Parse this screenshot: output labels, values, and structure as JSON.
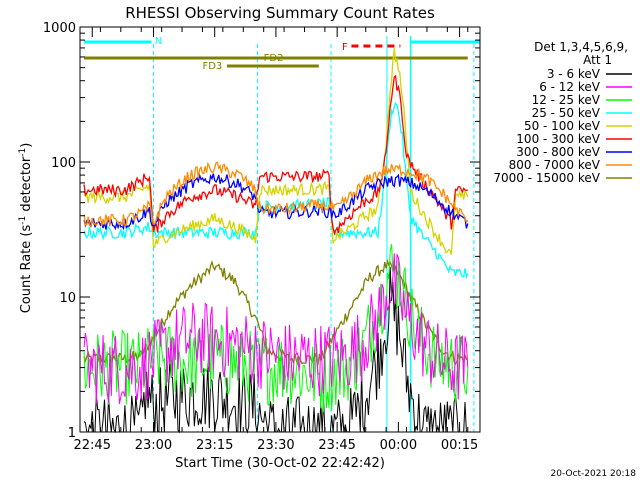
{
  "chart_data": {
    "type": "line",
    "title": "RHESSI Observing Summary Count Rates",
    "xlabel": "Start Time (30-Oct-02 22:42:42)",
    "ylabel": "Count Rate (s",
    "ylabel_sup1": "-1",
    "ylabel_mid": " detector",
    "ylabel_sup2": "-1",
    "ylabel_end": ")",
    "y_scale": "log",
    "ylim": [
      1,
      1000
    ],
    "xlim": [
      -3,
      95
    ],
    "x_ticks": [
      {
        "v": 0,
        "label": "22:45"
      },
      {
        "v": 15,
        "label": "23:00"
      },
      {
        "v": 30,
        "label": "23:15"
      },
      {
        "v": 45,
        "label": "23:30"
      },
      {
        "v": 60,
        "label": "23:45"
      },
      {
        "v": 75,
        "label": "00:00"
      },
      {
        "v": 90,
        "label": "00:15"
      }
    ],
    "y_ticks": [
      {
        "v": 1,
        "label": "1"
      },
      {
        "v": 10,
        "label": "10"
      },
      {
        "v": 100,
        "label": "100"
      },
      {
        "v": 1000,
        "label": "1000"
      }
    ],
    "legend": {
      "placement": "top-right",
      "header1": "Det 1,3,4,5,6,9,",
      "header2": "Att 1"
    },
    "series": [
      {
        "name": "3 - 6 keV",
        "color": "#000000"
      },
      {
        "name": "6 - 12 keV",
        "color": "#ff00ff"
      },
      {
        "name": "12 - 25 keV",
        "color": "#00ff00"
      },
      {
        "name": "25 - 50 keV",
        "color": "#00ffff"
      },
      {
        "name": "50 - 100 keV",
        "color": "#d4d400"
      },
      {
        "name": "100 - 300 keV",
        "color": "#ff0000"
      },
      {
        "name": "300 - 800 keV",
        "color": "#0000ff"
      },
      {
        "name": "800 - 7000 keV",
        "color": "#ff8c00"
      },
      {
        "name": "7000 - 15000 keV",
        "color": "#808000"
      }
    ],
    "series_points": {
      "800 - 7000 keV": [
        [
          -2,
          37
        ],
        [
          8,
          37
        ],
        [
          12,
          42
        ],
        [
          14,
          47
        ],
        [
          15,
          35
        ],
        [
          18,
          55
        ],
        [
          24,
          80
        ],
        [
          30,
          92
        ],
        [
          36,
          80
        ],
        [
          40,
          62
        ],
        [
          41,
          45
        ],
        [
          48,
          45
        ],
        [
          56,
          48
        ],
        [
          60,
          45
        ],
        [
          64,
          58
        ],
        [
          68,
          76
        ],
        [
          72,
          87
        ],
        [
          75,
          88
        ],
        [
          78,
          85
        ],
        [
          82,
          75
        ],
        [
          86,
          58
        ],
        [
          89,
          45
        ],
        [
          92,
          37
        ]
      ],
      "300 - 800 keV": [
        [
          -2,
          35
        ],
        [
          8,
          35
        ],
        [
          12,
          40
        ],
        [
          14,
          44
        ],
        [
          15,
          33
        ],
        [
          18,
          50
        ],
        [
          24,
          68
        ],
        [
          30,
          78
        ],
        [
          36,
          68
        ],
        [
          40,
          55
        ],
        [
          41,
          42
        ],
        [
          48,
          42
        ],
        [
          56,
          44
        ],
        [
          60,
          41
        ],
        [
          64,
          52
        ],
        [
          68,
          65
        ],
        [
          72,
          72
        ],
        [
          75,
          73
        ],
        [
          78,
          70
        ],
        [
          82,
          61
        ],
        [
          86,
          48
        ],
        [
          89,
          40
        ],
        [
          92,
          35
        ]
      ],
      "100 - 300 keV": [
        [
          -2,
          62
        ],
        [
          8,
          62
        ],
        [
          12,
          72
        ],
        [
          14,
          80
        ],
        [
          15,
          30
        ],
        [
          18,
          40
        ],
        [
          24,
          55
        ],
        [
          30,
          62
        ],
        [
          36,
          55
        ],
        [
          40,
          47
        ],
        [
          41,
          78
        ],
        [
          48,
          78
        ],
        [
          56,
          78
        ],
        [
          58,
          80
        ],
        [
          59,
          30
        ],
        [
          63,
          40
        ],
        [
          67,
          52
        ],
        [
          70,
          58
        ],
        [
          72,
          110
        ],
        [
          73,
          270
        ],
        [
          74,
          420
        ],
        [
          75,
          350
        ],
        [
          76,
          220
        ],
        [
          77,
          110
        ],
        [
          80,
          78
        ],
        [
          84,
          55
        ],
        [
          88,
          35
        ],
        [
          89,
          60
        ],
        [
          92,
          62
        ]
      ],
      "50 - 100 keV": [
        [
          -2,
          55
        ],
        [
          8,
          55
        ],
        [
          12,
          62
        ],
        [
          14,
          67
        ],
        [
          15,
          24
        ],
        [
          18,
          28
        ],
        [
          24,
          33
        ],
        [
          30,
          38
        ],
        [
          36,
          32
        ],
        [
          40,
          27
        ],
        [
          41,
          62
        ],
        [
          48,
          62
        ],
        [
          56,
          63
        ],
        [
          58,
          64
        ],
        [
          59,
          27
        ],
        [
          63,
          32
        ],
        [
          67,
          40
        ],
        [
          70,
          45
        ],
        [
          72,
          140
        ],
        [
          73,
          350
        ],
        [
          74,
          650
        ],
        [
          75,
          520
        ],
        [
          76,
          300
        ],
        [
          77,
          140
        ],
        [
          78,
          60
        ],
        [
          81,
          42
        ],
        [
          84,
          30
        ],
        [
          88,
          20
        ],
        [
          89,
          55
        ],
        [
          92,
          55
        ]
      ],
      "25 - 50 keV": [
        [
          -2,
          30
        ],
        [
          8,
          30
        ],
        [
          12,
          32
        ],
        [
          14,
          33
        ],
        [
          15,
          30
        ],
        [
          40,
          30
        ],
        [
          41,
          47
        ],
        [
          48,
          47
        ],
        [
          56,
          49
        ],
        [
          58,
          49
        ],
        [
          59,
          30
        ],
        [
          70,
          30
        ],
        [
          72,
          90
        ],
        [
          73,
          200
        ],
        [
          74,
          280
        ],
        [
          75,
          240
        ],
        [
          76,
          150
        ],
        [
          77,
          70
        ],
        [
          78,
          40
        ],
        [
          81,
          28
        ],
        [
          84,
          22
        ],
        [
          86,
          18
        ],
        [
          88,
          15
        ],
        [
          89,
          15
        ],
        [
          90,
          15
        ],
        [
          92,
          15
        ]
      ],
      "7000 - 15000 keV": [
        [
          -2,
          3.5
        ],
        [
          8,
          3.5
        ],
        [
          12,
          3.7
        ],
        [
          15,
          5
        ],
        [
          19,
          8
        ],
        [
          24,
          12
        ],
        [
          30,
          17
        ],
        [
          35,
          13
        ],
        [
          40,
          7
        ],
        [
          43,
          4
        ],
        [
          48,
          3.5
        ],
        [
          56,
          3.5
        ],
        [
          59,
          5
        ],
        [
          64,
          9
        ],
        [
          68,
          14
        ],
        [
          72,
          17
        ],
        [
          75,
          15
        ],
        [
          78,
          10
        ],
        [
          82,
          6
        ],
        [
          86,
          4
        ],
        [
          89,
          3.5
        ],
        [
          92,
          3.5
        ]
      ],
      "12 - 25 keV": [
        [
          -2,
          3
        ],
        [
          12,
          3
        ],
        [
          15,
          3.5
        ],
        [
          20,
          3.5
        ],
        [
          25,
          3.2
        ],
        [
          30,
          3.5
        ],
        [
          40,
          3
        ],
        [
          48,
          3
        ],
        [
          56,
          2.5
        ],
        [
          62,
          3
        ],
        [
          66,
          4
        ],
        [
          70,
          8
        ],
        [
          73,
          16
        ],
        [
          75,
          14
        ],
        [
          77,
          9
        ],
        [
          80,
          5
        ],
        [
          84,
          3.5
        ],
        [
          89,
          3
        ],
        [
          92,
          3
        ]
      ],
      "6 - 12 keV": [
        [
          -2,
          3
        ],
        [
          12,
          3
        ],
        [
          15,
          3.5
        ],
        [
          20,
          4.5
        ],
        [
          25,
          5
        ],
        [
          30,
          4.8
        ],
        [
          35,
          4.5
        ],
        [
          40,
          4
        ],
        [
          48,
          3.5
        ],
        [
          56,
          3.5
        ],
        [
          62,
          3.6
        ],
        [
          66,
          4.5
        ],
        [
          70,
          7
        ],
        [
          73,
          13
        ],
        [
          75,
          11
        ],
        [
          77,
          7
        ],
        [
          80,
          5
        ],
        [
          84,
          3.6
        ],
        [
          89,
          3
        ],
        [
          92,
          3
        ]
      ],
      "3 - 6 keV": [
        [
          -2,
          1
        ],
        [
          12,
          1
        ],
        [
          13,
          2
        ],
        [
          15,
          1.5
        ],
        [
          20,
          1.8
        ],
        [
          25,
          1.9
        ],
        [
          30,
          1.9
        ],
        [
          35,
          1.7
        ],
        [
          40,
          1.5
        ],
        [
          44,
          1
        ],
        [
          62,
          1
        ],
        [
          66,
          1.6
        ],
        [
          70,
          3.5
        ],
        [
          73,
          9
        ],
        [
          75,
          6
        ],
        [
          77,
          2.5
        ],
        [
          79,
          1.5
        ],
        [
          81,
          1
        ],
        [
          92,
          1
        ]
      ]
    },
    "annotations": {
      "N": "N",
      "F": "F",
      "FD2": "FD2",
      "FD3": "FD3"
    },
    "footer_timestamp": "20-Oct-2021 20:18"
  }
}
